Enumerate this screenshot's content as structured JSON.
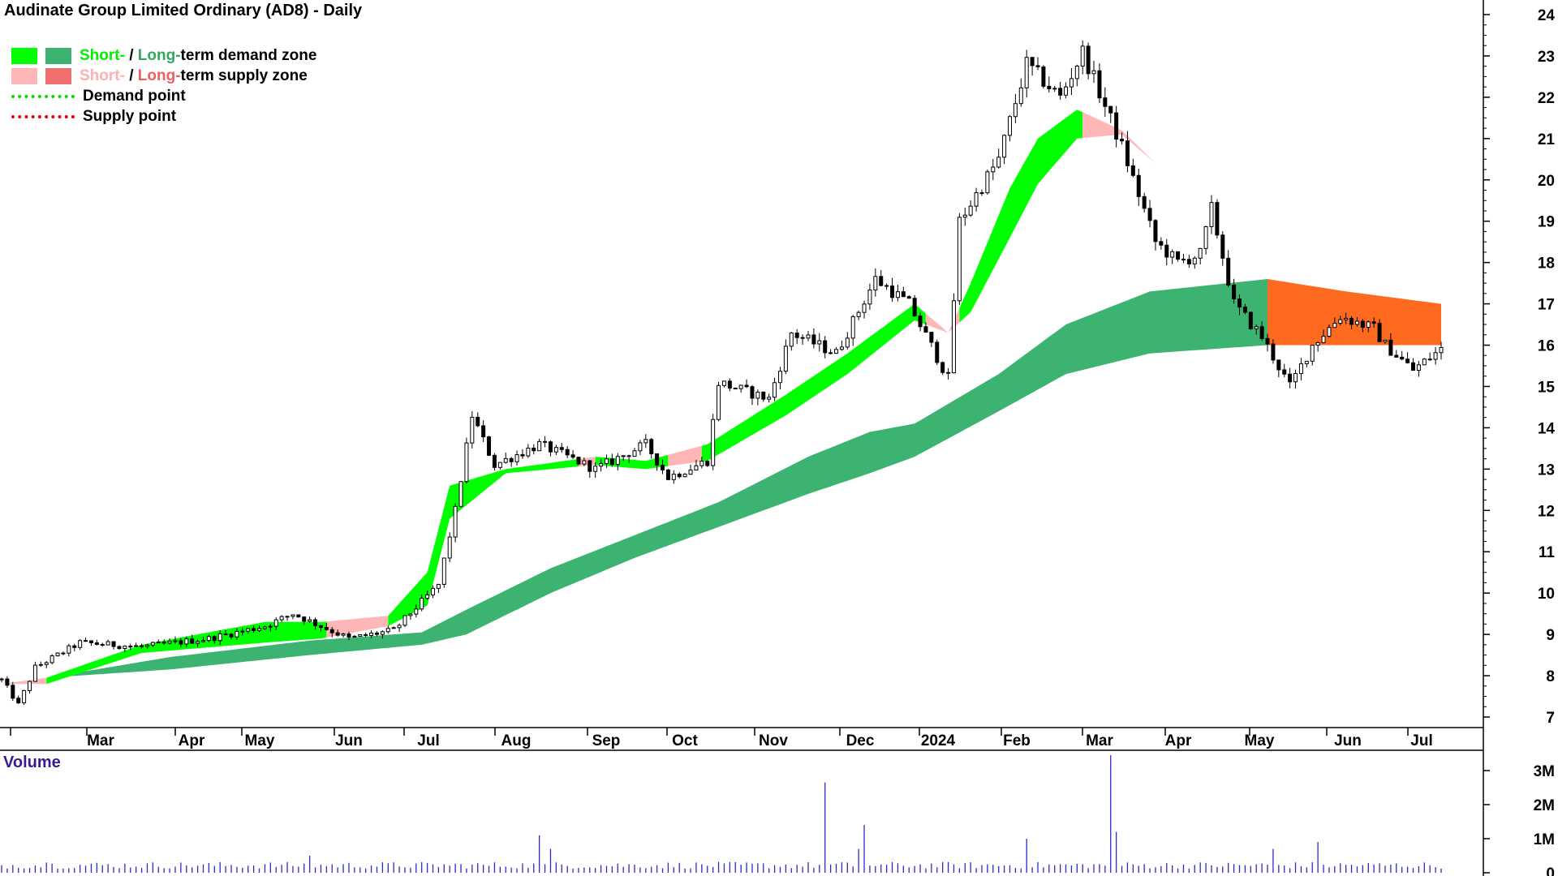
{
  "title": "Audinate Group Limited Ordinary (AD8) - Daily",
  "legend": {
    "demand": {
      "short": "Short-",
      "sep": " / ",
      "long": "Long-",
      "rest": "term demand zone"
    },
    "supply": {
      "short": "Short-",
      "sep": " / ",
      "long": "Long-",
      "rest": "term supply zone"
    },
    "demand_point": "Demand point",
    "supply_point": "Supply point"
  },
  "volume_label": "Volume",
  "colors": {
    "short_demand": "#00ff00",
    "long_demand": "#3cb371",
    "short_supply": "#ffb6b6",
    "long_supply": "#ff6a21",
    "demand_point": "#00dd00",
    "supply_point": "#ee0000",
    "volume_bar": "#2a2ad0",
    "legend_text_purple": "#3b1a8c"
  },
  "chart_data": {
    "type": "candlestick",
    "title": "Audinate Group Limited Ordinary (AD8) - Daily",
    "y_axis": {
      "side": "right",
      "ticks": [
        7,
        8,
        9,
        10,
        11,
        12,
        13,
        14,
        15,
        16,
        17,
        18,
        19,
        20,
        21,
        22,
        23,
        24
      ],
      "range": [
        6.7,
        24.3
      ]
    },
    "x_axis": {
      "labels": [
        "Mar",
        "Apr",
        "May",
        "Jun",
        "Jul",
        "Aug",
        "Sep",
        "Oct",
        "Nov",
        "Dec",
        "2024",
        "Feb",
        "Mar",
        "Apr",
        "May",
        "Jun",
        "Jul"
      ]
    },
    "price_path": [
      [
        0,
        7.9
      ],
      [
        3,
        7.3
      ],
      [
        6,
        8.2
      ],
      [
        14,
        8.8
      ],
      [
        25,
        8.7
      ],
      [
        37,
        8.9
      ],
      [
        47,
        9.2
      ],
      [
        52,
        9.5
      ],
      [
        62,
        8.9
      ],
      [
        70,
        9.1
      ],
      [
        78,
        10.2
      ],
      [
        81,
        12.0
      ],
      [
        84,
        14.3
      ],
      [
        88,
        13.1
      ],
      [
        96,
        13.6
      ],
      [
        106,
        13.0
      ],
      [
        115,
        13.6
      ],
      [
        119,
        12.8
      ],
      [
        126,
        13.2
      ],
      [
        128,
        15.1
      ],
      [
        137,
        14.7
      ],
      [
        141,
        16.3
      ],
      [
        149,
        15.8
      ],
      [
        156,
        17.6
      ],
      [
        162,
        17.0
      ],
      [
        169,
        15.2
      ],
      [
        171,
        19.0
      ],
      [
        178,
        20.5
      ],
      [
        183,
        22.8
      ],
      [
        189,
        22.0
      ],
      [
        193,
        23.1
      ],
      [
        200,
        20.8
      ],
      [
        206,
        18.5
      ],
      [
        210,
        18.0
      ],
      [
        214,
        18.2
      ],
      [
        216,
        19.3
      ],
      [
        220,
        17.0
      ],
      [
        225,
        16.2
      ],
      [
        230,
        15.0
      ],
      [
        234,
        16.0
      ],
      [
        239,
        16.7
      ],
      [
        245,
        16.4
      ],
      [
        247,
        16.0
      ],
      [
        252,
        15.4
      ],
      [
        257,
        15.9
      ]
    ],
    "short_term_zone": {
      "upper": [
        [
          0,
          7.8
        ],
        [
          8,
          7.95
        ],
        [
          25,
          8.75
        ],
        [
          47,
          9.3
        ],
        [
          57,
          9.3
        ],
        [
          69,
          9.45
        ],
        [
          76,
          10.5
        ],
        [
          80,
          12.6
        ],
        [
          90,
          13.0
        ],
        [
          106,
          13.3
        ],
        [
          115,
          13.2
        ],
        [
          126,
          13.6
        ],
        [
          140,
          14.8
        ],
        [
          151,
          15.8
        ],
        [
          163,
          17.0
        ],
        [
          169,
          16.3
        ],
        [
          173,
          17.5
        ],
        [
          180,
          19.8
        ],
        [
          185,
          21.0
        ],
        [
          192,
          21.7
        ],
        [
          200,
          21.2
        ],
        [
          206,
          20.4
        ],
        [
          216,
          19.3
        ],
        [
          226,
          17.9
        ],
        [
          232,
          17.2
        ],
        [
          240,
          16.8
        ],
        [
          257,
          16.0
        ]
      ],
      "lower": [
        [
          0,
          7.8
        ],
        [
          8,
          7.8
        ],
        [
          25,
          8.55
        ],
        [
          47,
          8.8
        ],
        [
          57,
          8.9
        ],
        [
          69,
          9.2
        ],
        [
          76,
          9.7
        ],
        [
          80,
          11.8
        ],
        [
          90,
          12.9
        ],
        [
          106,
          13.1
        ],
        [
          115,
          13.0
        ],
        [
          126,
          13.2
        ],
        [
          140,
          14.3
        ],
        [
          151,
          15.3
        ],
        [
          163,
          16.6
        ],
        [
          169,
          16.3
        ],
        [
          173,
          16.8
        ],
        [
          180,
          18.6
        ],
        [
          185,
          19.9
        ],
        [
          192,
          21.0
        ],
        [
          200,
          21.1
        ],
        [
          206,
          20.4
        ],
        [
          216,
          19.3
        ],
        [
          226,
          17.9
        ],
        [
          232,
          17.2
        ],
        [
          240,
          16.8
        ],
        [
          257,
          16.0
        ]
      ],
      "supply_segments": [
        [
          0,
          8
        ],
        [
          58,
          69
        ],
        [
          103,
          106
        ],
        [
          119,
          125
        ],
        [
          165,
          171
        ],
        [
          193,
          257
        ]
      ]
    },
    "long_term_zone": {
      "upper": [
        [
          8,
          7.95
        ],
        [
          30,
          8.45
        ],
        [
          55,
          8.85
        ],
        [
          75,
          9.05
        ],
        [
          83,
          9.6
        ],
        [
          98,
          10.6
        ],
        [
          113,
          11.4
        ],
        [
          128,
          12.2
        ],
        [
          144,
          13.3
        ],
        [
          155,
          13.9
        ],
        [
          163,
          14.1
        ],
        [
          178,
          15.3
        ],
        [
          190,
          16.5
        ],
        [
          205,
          17.3
        ],
        [
          226,
          17.6
        ],
        [
          240,
          17.3
        ],
        [
          257,
          17.0
        ]
      ],
      "lower": [
        [
          8,
          7.95
        ],
        [
          30,
          8.15
        ],
        [
          55,
          8.5
        ],
        [
          75,
          8.75
        ],
        [
          83,
          9.0
        ],
        [
          98,
          10.0
        ],
        [
          113,
          10.85
        ],
        [
          128,
          11.6
        ],
        [
          144,
          12.4
        ],
        [
          155,
          12.9
        ],
        [
          163,
          13.3
        ],
        [
          178,
          14.4
        ],
        [
          190,
          15.3
        ],
        [
          205,
          15.8
        ],
        [
          226,
          16.0
        ],
        [
          240,
          16.0
        ],
        [
          257,
          16.0
        ]
      ],
      "supply_from": 226
    },
    "volume": {
      "ticks": [
        {
          "value": 0,
          "label": "0"
        },
        {
          "value": 1,
          "label": "1M"
        },
        {
          "value": 2,
          "label": "2M"
        },
        {
          "value": 3,
          "label": "3M"
        }
      ],
      "unit": "M",
      "spikes": [
        [
          8,
          0.3
        ],
        [
          55,
          0.5
        ],
        [
          96,
          1.1
        ],
        [
          98,
          0.7
        ],
        [
          147,
          2.65
        ],
        [
          154,
          1.4
        ],
        [
          153,
          0.7
        ],
        [
          183,
          1.0
        ],
        [
          198,
          3.45
        ],
        [
          199,
          1.2
        ],
        [
          227,
          0.7
        ],
        [
          235,
          0.9
        ]
      ]
    }
  }
}
